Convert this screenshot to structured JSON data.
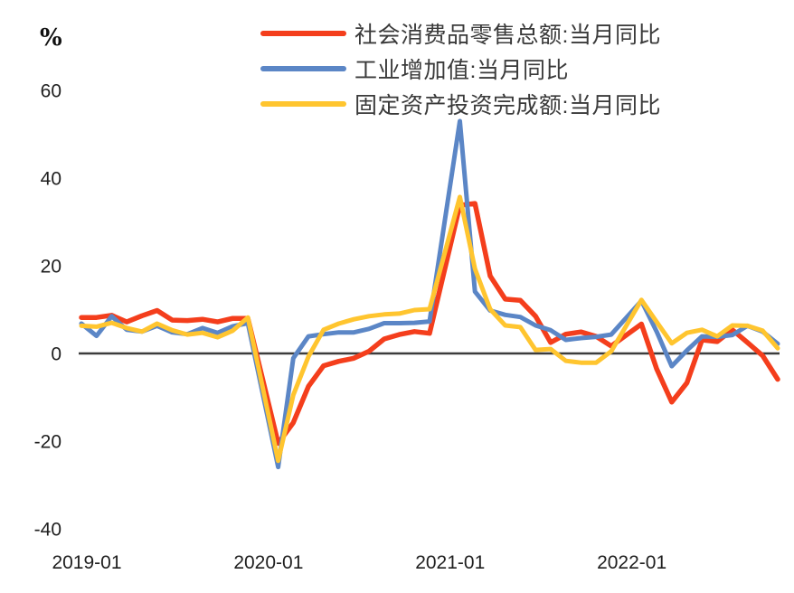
{
  "page": {
    "background": "#ffffff"
  },
  "chart_data": {
    "type": "line",
    "title": "",
    "ylabel": "%",
    "xlabel": "",
    "grid": false,
    "legend_position": "top-center",
    "axis_line_color": "#3c3c3c",
    "ylim": [
      -40,
      62
    ],
    "y_ticks": [
      60,
      40,
      20,
      0,
      -20,
      -40
    ],
    "x_tick_labels": [
      "2019-01",
      "2020-01",
      "2021-01",
      "2022-01"
    ],
    "x_tick_month_index": [
      0,
      12,
      24,
      36
    ],
    "categories": [
      "2019-01",
      "2019-02",
      "2019-03",
      "2019-04",
      "2019-05",
      "2019-06",
      "2019-07",
      "2019-08",
      "2019-09",
      "2019-10",
      "2019-11",
      "2019-12",
      "2020-01",
      "2020-02",
      "2020-03",
      "2020-04",
      "2020-05",
      "2020-06",
      "2020-07",
      "2020-08",
      "2020-09",
      "2020-10",
      "2020-11",
      "2020-12",
      "2021-01",
      "2021-02",
      "2021-03",
      "2021-04",
      "2021-05",
      "2021-06",
      "2021-07",
      "2021-08",
      "2021-09",
      "2021-10",
      "2021-11",
      "2021-12",
      "2022-01",
      "2022-02",
      "2022-03",
      "2022-04",
      "2022-05",
      "2022-06",
      "2022-07",
      "2022-08",
      "2022-09",
      "2022-10",
      "2022-11"
    ],
    "series": [
      {
        "name": "社会消费品零售总额:当月同比",
        "color": "#F43E1C",
        "values": [
          8.2,
          8.2,
          8.7,
          7.2,
          8.6,
          9.8,
          7.6,
          7.5,
          7.8,
          7.2,
          8.0,
          8.0,
          null,
          -20.5,
          -15.8,
          -7.5,
          -2.8,
          -1.8,
          -1.1,
          0.5,
          3.3,
          4.3,
          5.0,
          4.6,
          null,
          33.8,
          34.2,
          17.7,
          12.4,
          12.1,
          8.5,
          2.5,
          4.4,
          4.9,
          3.9,
          1.7,
          null,
          6.7,
          -3.5,
          -11.1,
          -6.7,
          3.1,
          2.7,
          5.4,
          2.5,
          -0.5,
          -5.9
        ]
      },
      {
        "name": "工业增加值:当月同比",
        "color": "#5B86C6",
        "values": [
          6.8,
          4.0,
          8.5,
          5.4,
          5.0,
          6.3,
          4.8,
          4.4,
          5.8,
          4.7,
          6.2,
          6.9,
          null,
          -25.9,
          -1.1,
          3.9,
          4.4,
          4.8,
          4.8,
          5.6,
          6.9,
          6.9,
          7.0,
          7.3,
          null,
          53.0,
          14.1,
          9.8,
          8.8,
          8.3,
          6.4,
          5.3,
          3.1,
          3.5,
          3.8,
          4.3,
          null,
          12.0,
          5.0,
          -2.9,
          0.7,
          3.9,
          3.8,
          4.2,
          6.3,
          5.0,
          2.2
        ]
      },
      {
        "name": "固定资产投资完成额:当月同比",
        "color": "#FFC52F",
        "values": [
          6.3,
          6.1,
          7.0,
          5.8,
          5.0,
          6.8,
          5.3,
          4.3,
          4.7,
          3.7,
          5.2,
          8.2,
          null,
          -24.5,
          -9.5,
          -0.7,
          5.4,
          6.8,
          7.8,
          8.5,
          8.9,
          9.1,
          9.9,
          10.1,
          null,
          35.7,
          19.3,
          10.1,
          6.4,
          6.0,
          0.8,
          1.0,
          -1.7,
          -2.1,
          -2.1,
          0.5,
          null,
          12.2,
          7.2,
          2.3,
          4.7,
          5.4,
          3.9,
          6.4,
          6.3,
          5.2,
          1.2
        ]
      }
    ]
  }
}
